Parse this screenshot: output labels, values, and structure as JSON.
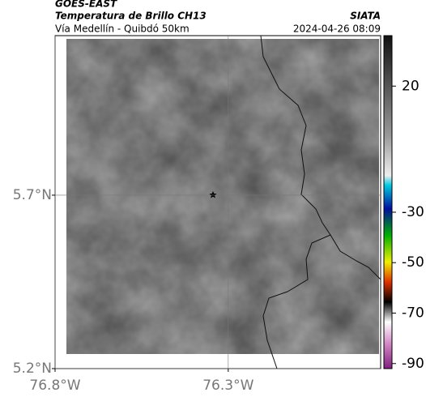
{
  "header": {
    "title": "GOES-EAST",
    "subtitle": "Temperatura de Brillo CH13",
    "route": "Vía Medellín - Quibdó 50km",
    "source": "SIATA",
    "timestamp": "2024-04-26 08:09"
  },
  "map": {
    "xlim": [
      -76.8,
      -75.86
    ],
    "ylim": [
      5.2,
      6.16
    ],
    "xticks": [
      {
        "value": -76.8,
        "label": "76.8°W"
      },
      {
        "value": -76.3,
        "label": "76.3°W"
      }
    ],
    "yticks": [
      {
        "value": 5.2,
        "label": "5.2°N"
      },
      {
        "value": 5.7,
        "label": "5.7°N"
      }
    ],
    "grid": true
  },
  "colorbar": {
    "clim": [
      -92,
      40
    ],
    "ticks": [
      20,
      -30,
      -50,
      -70,
      -90
    ]
  }
}
